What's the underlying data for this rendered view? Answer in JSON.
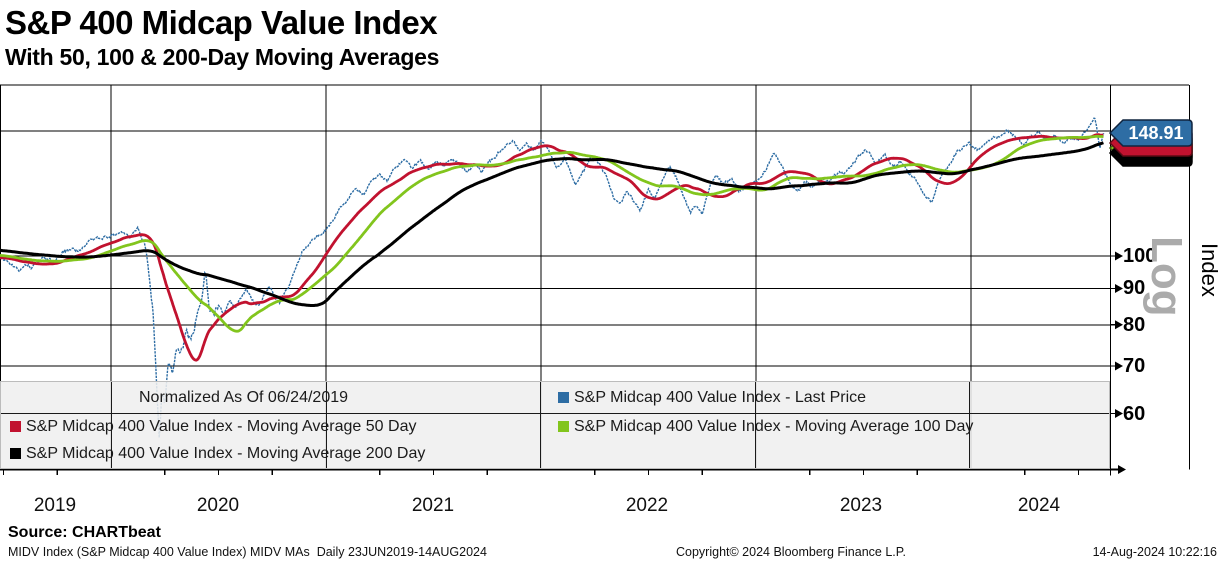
{
  "header": {
    "title": "S&P 400 Midcap Value Index",
    "subtitle": "With 50, 100 & 200-Day Moving Averages"
  },
  "footer": {
    "source": "Source: CHARTbeat",
    "meta": "MIDV Index (S&P Midcap 400 Value Index) MIDV MAs  Daily 23JUN2019-14AUG2024",
    "copyright": "Copyright© 2024 Bloomberg Finance L.P.",
    "timestamp": "14-Aug-2024 10:22:16"
  },
  "legend": {
    "normalized_note": "Normalized As Of 06/24/2019",
    "items": [
      {
        "label": "S&P Midcap 400 Value Index - Last Price",
        "color": "#2E6DA4"
      },
      {
        "label": "S&P Midcap 400 Value Index - Moving Average 50 Day",
        "color": "#C1122F"
      },
      {
        "label": "S&P Midcap 400 Value Index - Moving Average 100 Day",
        "color": "#82C51D"
      },
      {
        "label": "S&P Midcap 400 Value Index - Moving Average 200 Day",
        "color": "#000000"
      }
    ]
  },
  "axis": {
    "y_axis_title": "Index",
    "y_scale_label": "Log",
    "y_tick_labels": [
      "100",
      "90",
      "80",
      "70",
      "60"
    ],
    "x_year_labels": [
      "2019",
      "2020",
      "2021",
      "2022",
      "2023",
      "2024"
    ],
    "last_price_tag": "148.91"
  },
  "colors": {
    "price": "#2E6DA4",
    "ma50": "#C1122F",
    "ma100": "#82C51D",
    "ma200": "#000000",
    "watermark": "#ABABAB",
    "legend_bg": "#EFEFEF",
    "tag_border_price": "#10253F",
    "tag_border_ma50": "#5C0A14",
    "tag_border_ma200": "#000000",
    "tag_border_ma100": "#3E5C0E"
  },
  "chart_data": {
    "type": "line",
    "title": "S&P 400 Midcap Value Index with 50, 100 & 200-day moving averages",
    "normalized_note": "Normalized As Of 06/24/2019",
    "date_range": "23JUN2019-14AUG2024",
    "frequency": "Daily",
    "y_scale": "log",
    "y_gridline_values": [
      150,
      100,
      90,
      80,
      70,
      60
    ],
    "y_labeled_ticks": [
      100,
      90,
      80,
      70,
      60
    ],
    "x_years": [
      2019,
      2020,
      2021,
      2022,
      2023,
      2024
    ],
    "last_price": 148.91,
    "series_names": {
      "price": "S&P Midcap 400 Value Index - Last Price",
      "ma50": "S&P Midcap 400 Value Index - Moving Average 50 Day",
      "ma100": "S&P Midcap 400 Value Index - Moving Average 100 Day",
      "ma200": "S&P Midcap 400 Value Index - Moving Average 200 Day"
    },
    "moving_averages": [
      {
        "key": "ma50",
        "trading_days": 50
      },
      {
        "key": "ma100",
        "trading_days": 100
      },
      {
        "key": "ma200",
        "trading_days": 200
      }
    ],
    "pre_history_points": [
      [
        2018.68,
        105
      ],
      [
        2018.8,
        102.5
      ],
      [
        2018.92,
        104
      ],
      [
        2019.05,
        103.5
      ],
      [
        2019.15,
        101
      ],
      [
        2019.25,
        100.5
      ],
      [
        2019.35,
        99.5
      ],
      [
        2019.42,
        98.8
      ],
      [
        2019.46,
        99.6
      ]
    ],
    "price_points": [
      [
        2019.475,
        100
      ],
      [
        2019.51,
        98.6
      ],
      [
        2019.545,
        96.8
      ],
      [
        2019.575,
        95.2
      ],
      [
        2019.6,
        97.6
      ],
      [
        2019.635,
        96.3
      ],
      [
        2019.665,
        98.6
      ],
      [
        2019.7,
        99.6
      ],
      [
        2019.735,
        98.2
      ],
      [
        2019.775,
        101.2
      ],
      [
        2019.815,
        102.4
      ],
      [
        2019.85,
        101.3
      ],
      [
        2019.89,
        104.2
      ],
      [
        2019.93,
        105.8
      ],
      [
        2019.97,
        106.3
      ],
      [
        2020.01,
        107
      ],
      [
        2020.05,
        108.2
      ],
      [
        2020.085,
        106
      ],
      [
        2020.125,
        109.3
      ],
      [
        2020.155,
        104
      ],
      [
        2020.175,
        95
      ],
      [
        2020.195,
        84
      ],
      [
        2020.21,
        68
      ],
      [
        2020.225,
        55
      ],
      [
        2020.237,
        65
      ],
      [
        2020.25,
        61.5
      ],
      [
        2020.265,
        71
      ],
      [
        2020.285,
        68.5
      ],
      [
        2020.305,
        74.5
      ],
      [
        2020.325,
        72.8
      ],
      [
        2020.35,
        78
      ],
      [
        2020.37,
        76
      ],
      [
        2020.4,
        82
      ],
      [
        2020.425,
        87.5
      ],
      [
        2020.437,
        96
      ],
      [
        2020.455,
        85.5
      ],
      [
        2020.475,
        82.5
      ],
      [
        2020.5,
        85.5
      ],
      [
        2020.525,
        83
      ],
      [
        2020.55,
        86.5
      ],
      [
        2020.58,
        84.5
      ],
      [
        2020.605,
        87.5
      ],
      [
        2020.63,
        89.5
      ],
      [
        2020.655,
        86.5
      ],
      [
        2020.685,
        84.8
      ],
      [
        2020.71,
        88
      ],
      [
        2020.735,
        90.5
      ],
      [
        2020.76,
        88
      ],
      [
        2020.785,
        85.8
      ],
      [
        2020.81,
        88.5
      ],
      [
        2020.84,
        92.5
      ],
      [
        2020.865,
        97
      ],
      [
        2020.89,
        101.5
      ],
      [
        2020.92,
        104
      ],
      [
        2020.95,
        106.5
      ],
      [
        2020.985,
        107.8
      ],
      [
        2021.02,
        111
      ],
      [
        2021.06,
        116
      ],
      [
        2021.1,
        120
      ],
      [
        2021.14,
        124.5
      ],
      [
        2021.175,
        122
      ],
      [
        2021.21,
        127
      ],
      [
        2021.25,
        130
      ],
      [
        2021.285,
        127.5
      ],
      [
        2021.32,
        133
      ],
      [
        2021.36,
        136.5
      ],
      [
        2021.4,
        133.5
      ],
      [
        2021.44,
        135.8
      ],
      [
        2021.475,
        132.5
      ],
      [
        2021.51,
        136
      ],
      [
        2021.545,
        134
      ],
      [
        2021.58,
        137
      ],
      [
        2021.62,
        134.5
      ],
      [
        2021.655,
        131
      ],
      [
        2021.69,
        134.5
      ],
      [
        2021.725,
        131.5
      ],
      [
        2021.765,
        136
      ],
      [
        2021.8,
        139.5
      ],
      [
        2021.835,
        142.5
      ],
      [
        2021.87,
        146
      ],
      [
        2021.9,
        140
      ],
      [
        2021.935,
        143.5
      ],
      [
        2021.965,
        141
      ],
      [
        2022.0,
        145.5
      ],
      [
        2022.04,
        139.5
      ],
      [
        2022.075,
        133.5
      ],
      [
        2022.11,
        137.5
      ],
      [
        2022.16,
        126.5
      ],
      [
        2022.2,
        132
      ],
      [
        2022.235,
        138
      ],
      [
        2022.27,
        135
      ],
      [
        2022.305,
        129
      ],
      [
        2022.335,
        121.5
      ],
      [
        2022.365,
        118.5
      ],
      [
        2022.4,
        123
      ],
      [
        2022.435,
        119
      ],
      [
        2022.46,
        116
      ],
      [
        2022.5,
        124
      ],
      [
        2022.53,
        120
      ],
      [
        2022.565,
        128
      ],
      [
        2022.6,
        134
      ],
      [
        2022.635,
        128
      ],
      [
        2022.665,
        121
      ],
      [
        2022.695,
        115
      ],
      [
        2022.72,
        118
      ],
      [
        2022.75,
        114.3
      ],
      [
        2022.785,
        125
      ],
      [
        2022.815,
        129.5
      ],
      [
        2022.85,
        126.5
      ],
      [
        2022.885,
        128.5
      ],
      [
        2022.92,
        123.5
      ],
      [
        2022.96,
        125.5
      ],
      [
        2023.0,
        127
      ],
      [
        2023.045,
        132
      ],
      [
        2023.085,
        139.5
      ],
      [
        2023.125,
        133
      ],
      [
        2023.165,
        125.5
      ],
      [
        2023.195,
        123.5
      ],
      [
        2023.23,
        127.5
      ],
      [
        2023.265,
        125
      ],
      [
        2023.3,
        128.5
      ],
      [
        2023.335,
        127
      ],
      [
        2023.37,
        130.5
      ],
      [
        2023.42,
        131
      ],
      [
        2023.47,
        137
      ],
      [
        2023.51,
        141.5
      ],
      [
        2023.555,
        135.5
      ],
      [
        2023.6,
        138.5
      ],
      [
        2023.64,
        133.5
      ],
      [
        2023.675,
        136
      ],
      [
        2023.71,
        130.5
      ],
      [
        2023.745,
        128
      ],
      [
        2023.78,
        122.5
      ],
      [
        2023.815,
        119.3
      ],
      [
        2023.855,
        128
      ],
      [
        2023.895,
        134
      ],
      [
        2023.935,
        140
      ],
      [
        2023.99,
        144
      ],
      [
        2024.03,
        141
      ],
      [
        2024.065,
        144.5
      ],
      [
        2024.1,
        146.5
      ],
      [
        2024.135,
        148
      ],
      [
        2024.165,
        150.5
      ],
      [
        2024.2,
        147.5
      ],
      [
        2024.24,
        143.5
      ],
      [
        2024.28,
        147.5
      ],
      [
        2024.32,
        149
      ],
      [
        2024.35,
        146
      ],
      [
        2024.39,
        147.5
      ],
      [
        2024.43,
        144.5
      ],
      [
        2024.465,
        146.5
      ],
      [
        2024.5,
        145.5
      ],
      [
        2024.53,
        149.5
      ],
      [
        2024.555,
        153.5
      ],
      [
        2024.575,
        156.5
      ],
      [
        2024.59,
        148
      ],
      [
        2024.6,
        142.5
      ],
      [
        2024.61,
        147
      ],
      [
        2024.617,
        148.91
      ]
    ]
  }
}
